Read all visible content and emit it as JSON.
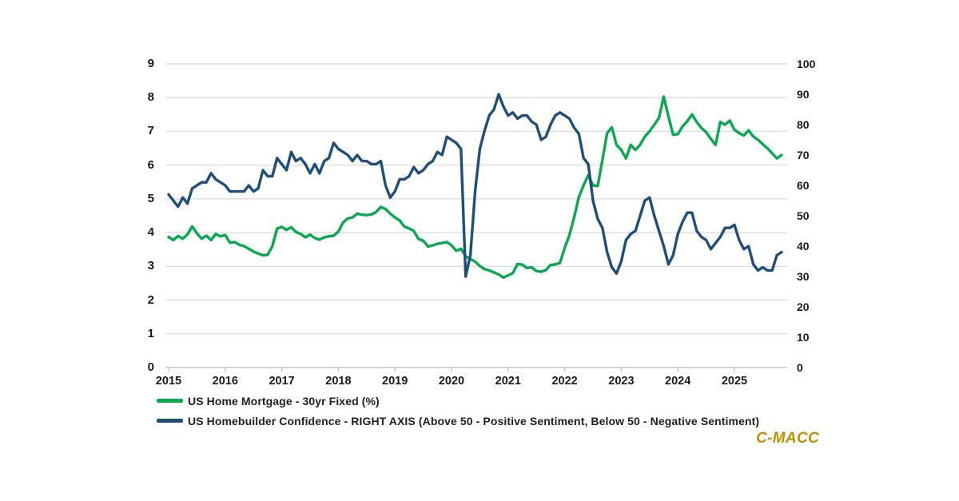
{
  "page": {
    "background": "#ffffff"
  },
  "branding": {
    "logo_text": "C-MACC",
    "logo_color": "#bf9000"
  },
  "chart_data": {
    "type": "line",
    "title": "",
    "x_unit": "month",
    "x_start": "2015-01",
    "x_end": "2025-11",
    "x_tick_labels": [
      "2015",
      "2016",
      "2017",
      "2018",
      "2019",
      "2020",
      "2021",
      "2022",
      "2023",
      "2024",
      "2025"
    ],
    "left_axis": {
      "min": 0,
      "max": 9,
      "tick_interval": 1,
      "tick_labels": [
        "0",
        "1",
        "2",
        "3",
        "4",
        "5",
        "6",
        "7",
        "8",
        "9"
      ]
    },
    "right_axis": {
      "min": 0,
      "max": 100,
      "tick_interval": 10,
      "tick_labels": [
        "0",
        "10",
        "20",
        "30",
        "40",
        "50",
        "60",
        "70",
        "80",
        "90",
        "100"
      ]
    },
    "grid": true,
    "legend_position": "bottom-left",
    "style": {
      "grid_color": "#d9d9d9",
      "axis_color": "#bfbfbf",
      "text_color": "#1a1a1a"
    },
    "series": [
      {
        "name": "US Home Mortgage - 30yr Fixed (%)",
        "axis": "left",
        "color": "#0aa84f",
        "values": [
          3.87,
          3.78,
          3.9,
          3.82,
          3.95,
          4.18,
          3.98,
          3.82,
          3.91,
          3.78,
          3.96,
          3.89,
          3.93,
          3.7,
          3.72,
          3.64,
          3.6,
          3.52,
          3.44,
          3.38,
          3.33,
          3.34,
          3.6,
          4.12,
          4.17,
          4.08,
          4.16,
          4.02,
          3.96,
          3.86,
          3.94,
          3.84,
          3.79,
          3.86,
          3.89,
          3.91,
          4.03,
          4.3,
          4.42,
          4.45,
          4.56,
          4.53,
          4.52,
          4.54,
          4.61,
          4.76,
          4.7,
          4.56,
          4.45,
          4.36,
          4.18,
          4.12,
          4.05,
          3.81,
          3.76,
          3.59,
          3.62,
          3.67,
          3.69,
          3.72,
          3.62,
          3.46,
          3.52,
          3.3,
          3.22,
          3.14,
          3.01,
          2.92,
          2.88,
          2.82,
          2.76,
          2.67,
          2.73,
          2.8,
          3.07,
          3.05,
          2.95,
          2.97,
          2.86,
          2.84,
          2.89,
          3.04,
          3.06,
          3.1,
          3.55,
          3.92,
          4.45,
          5.05,
          5.4,
          5.7,
          5.4,
          5.38,
          6.15,
          6.95,
          7.12,
          6.6,
          6.45,
          6.2,
          6.6,
          6.45,
          6.6,
          6.85,
          7.0,
          7.2,
          7.4,
          8.03,
          7.45,
          6.9,
          6.92,
          7.15,
          7.3,
          7.5,
          7.28,
          7.1,
          6.98,
          6.78,
          6.6,
          7.28,
          7.2,
          7.32,
          7.05,
          6.95,
          6.88,
          7.03,
          6.85,
          6.75,
          6.62,
          6.5,
          6.35,
          6.2,
          6.3
        ]
      },
      {
        "name": "US Homebuilder Confidence - RIGHT AXIS (Above 50 - Positive Sentiment, Below 50 - Negative Sentiment)",
        "axis": "right",
        "color": "#1f4e79",
        "values": [
          57,
          55,
          53,
          56,
          54,
          59,
          60,
          61,
          61,
          64,
          62,
          61,
          60,
          58,
          58,
          58,
          58,
          60,
          58,
          59,
          65,
          63,
          63,
          69,
          67,
          65,
          71,
          68,
          69,
          67,
          64,
          67,
          64,
          68,
          69,
          74,
          72,
          71,
          70,
          68,
          70,
          68,
          68,
          67,
          67,
          68,
          60,
          56,
          58,
          62,
          62,
          63,
          66,
          64,
          65,
          67,
          68,
          71,
          70,
          76,
          75,
          74,
          72,
          30,
          37,
          58,
          72,
          78,
          83,
          85,
          90,
          86,
          83,
          84,
          82,
          83,
          83,
          81,
          80,
          75,
          76,
          80,
          83,
          84,
          83,
          82,
          79,
          77,
          69,
          67,
          55,
          49,
          46,
          38,
          33,
          31,
          35,
          42,
          44,
          45,
          50,
          55,
          56,
          50,
          45,
          40,
          34,
          37,
          44,
          48,
          51,
          51,
          45,
          43,
          42,
          39,
          41,
          43,
          46,
          46,
          47,
          42,
          39,
          40,
          34,
          32,
          33,
          32,
          32,
          37,
          38
        ]
      }
    ]
  }
}
